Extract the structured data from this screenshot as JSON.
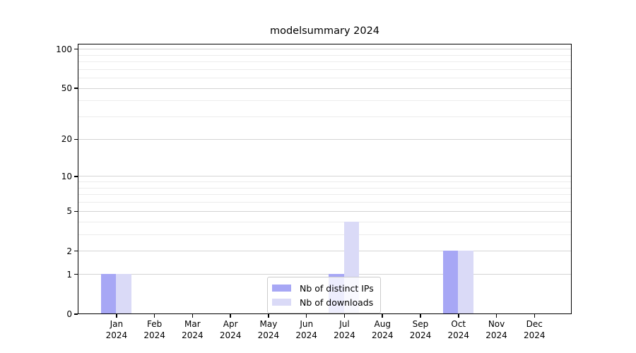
{
  "title": "modelsummary 2024",
  "chart_data": {
    "type": "bar",
    "title": "modelsummary 2024",
    "categories": [
      "Jan",
      "Feb",
      "Mar",
      "Apr",
      "May",
      "Jun",
      "Jul",
      "Aug",
      "Sep",
      "Oct",
      "Nov",
      "Dec"
    ],
    "category_year": "2024",
    "series": [
      {
        "name": "Nb of distinct IPs",
        "color": "#a7a7f5",
        "values": [
          1,
          0,
          0,
          0,
          0,
          0,
          1,
          0,
          0,
          2,
          0,
          0
        ]
      },
      {
        "name": "Nb of downloads",
        "color": "#dadaf7",
        "values": [
          1,
          0,
          0,
          0,
          0,
          0,
          4,
          0,
          0,
          2,
          0,
          0
        ]
      }
    ],
    "yscale": "log1p",
    "ylim": [
      0,
      110
    ],
    "yticks_major": [
      0,
      1,
      2,
      5,
      10,
      20,
      50,
      100
    ],
    "yticks_minor": [
      3,
      4,
      6,
      7,
      8,
      9,
      30,
      40,
      60,
      70,
      80,
      90
    ],
    "grid": "horizontal",
    "legend_position": "lower center"
  },
  "colors": {
    "grid_major": "#d4d4d4",
    "grid_minor": "#ececec",
    "axis": "#000000",
    "legend_border": "#cccccc"
  }
}
